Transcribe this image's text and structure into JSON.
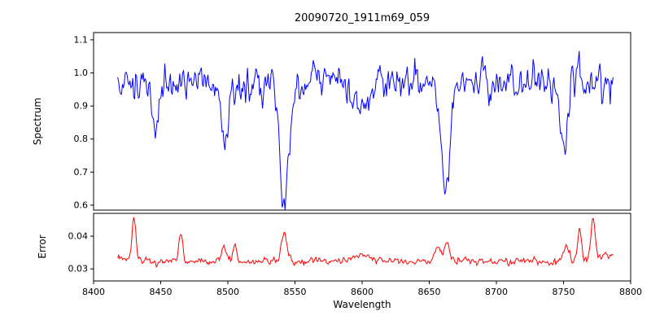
{
  "chart_data": {
    "type": "line",
    "title": "20090720_1911m69_059",
    "xlabel": "Wavelength",
    "grid": false,
    "legend": null,
    "xlim": [
      8400,
      8800
    ],
    "x_range": [
      8418,
      8787
    ],
    "x_ticks": [
      8400,
      8450,
      8500,
      8550,
      8600,
      8650,
      8700,
      8750,
      8800
    ],
    "x_tick_labels": [
      "8400",
      "8450",
      "8500",
      "8550",
      "8600",
      "8650",
      "8700",
      "8750",
      "8800"
    ],
    "panels": [
      {
        "name": "spectrum",
        "ylabel": "Spectrum",
        "ylim": [
          0.585,
          1.122
        ],
        "y_ticks": [
          0.6,
          0.7,
          0.8,
          0.9,
          1.0,
          1.1
        ],
        "y_tick_labels": [
          "0.6",
          "0.7",
          "0.8",
          "0.9",
          "1.0",
          "1.1"
        ],
        "line_color": "#0000ff",
        "continuum": 0.972,
        "noise_sigma": 0.028,
        "absorption_lines": [
          {
            "center": 8446,
            "depth": 0.14,
            "width": 2.4
          },
          {
            "center": 8498,
            "depth": 0.19,
            "width": 2.8
          },
          {
            "center": 8542,
            "depth": 0.375,
            "width": 3.5
          },
          {
            "center": 8600,
            "depth": 0.06,
            "width": 7.0
          },
          {
            "center": 8662,
            "depth": 0.335,
            "width": 3.2
          },
          {
            "center": 8750,
            "depth": 0.22,
            "width": 2.6
          }
        ]
      },
      {
        "name": "error",
        "ylabel": "Error",
        "ylim": [
          0.0263,
          0.047
        ],
        "y_ticks": [
          0.03,
          0.04
        ],
        "y_tick_labels": [
          "0.03",
          "0.04"
        ],
        "line_color": "#ff0000",
        "baseline": 0.0323,
        "noise_sigma": 0.0006,
        "peaks": [
          {
            "center": 8418,
            "height": 0.001,
            "width": 8.0
          },
          {
            "center": 8430,
            "height": 0.013,
            "width": 1.4
          },
          {
            "center": 8465,
            "height": 0.009,
            "width": 1.4
          },
          {
            "center": 8497,
            "height": 0.004,
            "width": 2.0
          },
          {
            "center": 8505,
            "height": 0.005,
            "width": 1.6
          },
          {
            "center": 8542,
            "height": 0.009,
            "width": 2.0
          },
          {
            "center": 8600,
            "height": 0.0018,
            "width": 6.0
          },
          {
            "center": 8656,
            "height": 0.0045,
            "width": 2.0
          },
          {
            "center": 8663,
            "height": 0.006,
            "width": 2.0
          },
          {
            "center": 8752,
            "height": 0.005,
            "width": 2.0
          },
          {
            "center": 8762,
            "height": 0.01,
            "width": 1.5
          },
          {
            "center": 8772,
            "height": 0.0125,
            "width": 1.5
          },
          {
            "center": 8785,
            "height": 0.002,
            "width": 10.0
          }
        ]
      }
    ]
  }
}
